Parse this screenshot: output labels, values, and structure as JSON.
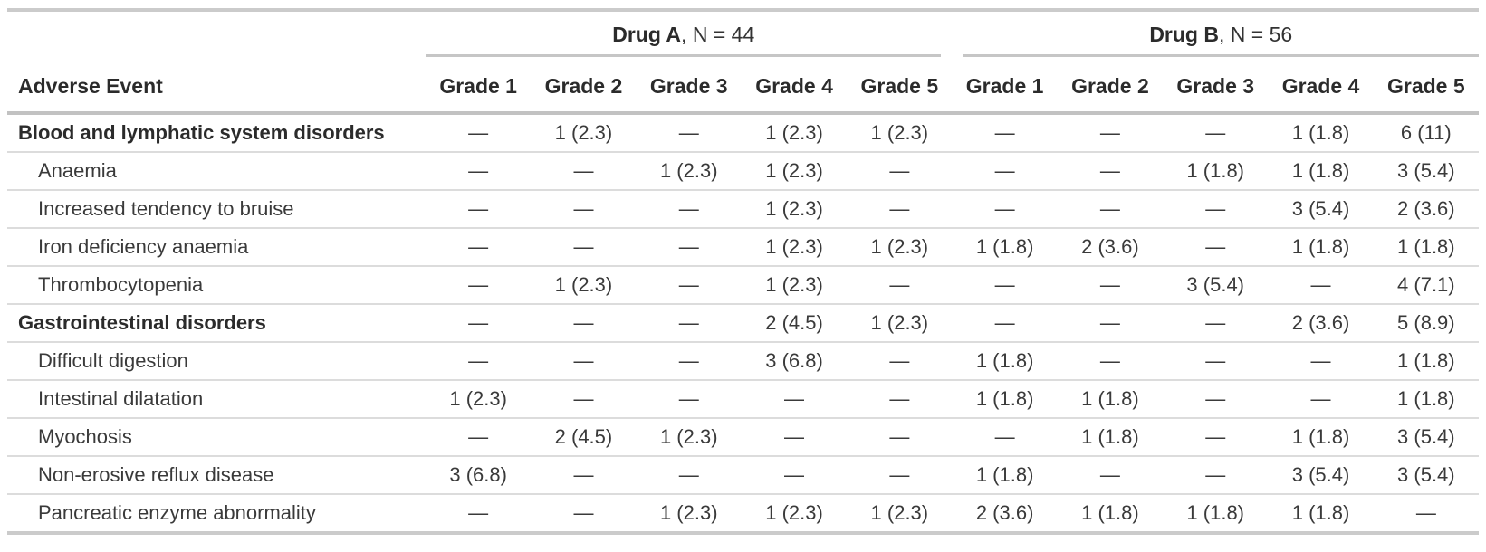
{
  "chart_data": {
    "type": "table",
    "stub_header": "Adverse Event",
    "spanners": [
      {
        "label_bold": "Drug A",
        "label_rest": ", N = 44"
      },
      {
        "label_bold": "Drug B",
        "label_rest": ", N = 56"
      }
    ],
    "grade_labels": [
      "Grade 1",
      "Grade 2",
      "Grade 3",
      "Grade 4",
      "Grade 5"
    ],
    "rows": [
      {
        "label": "Blood and lymphatic system disorders",
        "bold": true,
        "indent": false,
        "drug_a": [
          "—",
          "1 (2.3)",
          "—",
          "1 (2.3)",
          "1 (2.3)"
        ],
        "drug_b": [
          "—",
          "—",
          "—",
          "1 (1.8)",
          "6 (11)"
        ]
      },
      {
        "label": "Anaemia",
        "bold": false,
        "indent": true,
        "drug_a": [
          "—",
          "—",
          "1 (2.3)",
          "1 (2.3)",
          "—"
        ],
        "drug_b": [
          "—",
          "—",
          "1 (1.8)",
          "1 (1.8)",
          "3 (5.4)"
        ]
      },
      {
        "label": "Increased tendency to bruise",
        "bold": false,
        "indent": true,
        "drug_a": [
          "—",
          "—",
          "—",
          "1 (2.3)",
          "—"
        ],
        "drug_b": [
          "—",
          "—",
          "—",
          "3 (5.4)",
          "2 (3.6)"
        ]
      },
      {
        "label": "Iron deficiency anaemia",
        "bold": false,
        "indent": true,
        "drug_a": [
          "—",
          "—",
          "—",
          "1 (2.3)",
          "1 (2.3)"
        ],
        "drug_b": [
          "1 (1.8)",
          "2 (3.6)",
          "—",
          "1 (1.8)",
          "1 (1.8)"
        ]
      },
      {
        "label": "Thrombocytopenia",
        "bold": false,
        "indent": true,
        "drug_a": [
          "—",
          "1 (2.3)",
          "—",
          "1 (2.3)",
          "—"
        ],
        "drug_b": [
          "—",
          "—",
          "3 (5.4)",
          "—",
          "4 (7.1)"
        ]
      },
      {
        "label": "Gastrointestinal disorders",
        "bold": true,
        "indent": false,
        "drug_a": [
          "—",
          "—",
          "—",
          "2 (4.5)",
          "1 (2.3)"
        ],
        "drug_b": [
          "—",
          "—",
          "—",
          "2 (3.6)",
          "5 (8.9)"
        ]
      },
      {
        "label": "Difficult digestion",
        "bold": false,
        "indent": true,
        "drug_a": [
          "—",
          "—",
          "—",
          "3 (6.8)",
          "—"
        ],
        "drug_b": [
          "1 (1.8)",
          "—",
          "—",
          "—",
          "1 (1.8)"
        ]
      },
      {
        "label": "Intestinal dilatation",
        "bold": false,
        "indent": true,
        "drug_a": [
          "1 (2.3)",
          "—",
          "—",
          "—",
          "—"
        ],
        "drug_b": [
          "1 (1.8)",
          "1 (1.8)",
          "—",
          "—",
          "1 (1.8)"
        ]
      },
      {
        "label": "Myochosis",
        "bold": false,
        "indent": true,
        "drug_a": [
          "—",
          "2 (4.5)",
          "1 (2.3)",
          "—",
          "—"
        ],
        "drug_b": [
          "—",
          "1 (1.8)",
          "—",
          "1 (1.8)",
          "3 (5.4)"
        ]
      },
      {
        "label": "Non-erosive reflux disease",
        "bold": false,
        "indent": true,
        "drug_a": [
          "3 (6.8)",
          "—",
          "—",
          "—",
          "—"
        ],
        "drug_b": [
          "1 (1.8)",
          "—",
          "—",
          "3 (5.4)",
          "3 (5.4)"
        ]
      },
      {
        "label": "Pancreatic enzyme abnormality",
        "bold": false,
        "indent": true,
        "drug_a": [
          "—",
          "—",
          "1 (2.3)",
          "1 (2.3)",
          "1 (2.3)"
        ],
        "drug_b": [
          "2 (3.6)",
          "1 (1.8)",
          "1 (1.8)",
          "1 (1.8)",
          "—"
        ]
      }
    ],
    "layout": {
      "legend_position": "none",
      "grid": "horizontal-rules"
    },
    "colors": {
      "text_body": "#3a3a3a",
      "text_header": "#2b2b2b",
      "rule_heavy": "#c6c6c6",
      "rule_light": "#dcdcdc",
      "background": "#ffffff"
    }
  }
}
